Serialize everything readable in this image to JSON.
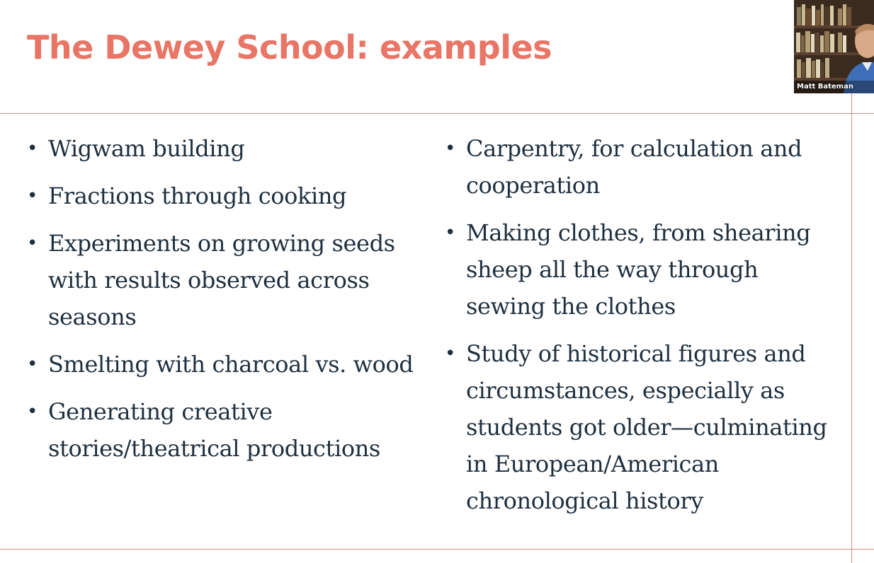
{
  "slide": {
    "title": "The Dewey School: examples",
    "colors": {
      "title": "#e87566",
      "rule": "#d88a7c",
      "body_text": "#1e2f3e",
      "background": "#ffffff"
    },
    "bullet_glyph": "•",
    "left_items": [
      "Wigwam building",
      "Fractions through cooking",
      "Experiments on growing seeds with results observed across seasons",
      "Smelting with charcoal vs. wood",
      "Generating creative stories/theatrical productions"
    ],
    "right_items": [
      "Carpentry, for calculation and cooperation",
      "Making clothes, from shearing sheep all the way through sewing the clothes",
      "Study of historical figures and circumstances, especially as students got older—culminating in European/American chronological history"
    ]
  },
  "video": {
    "participant_name": "Matt Bateman",
    "icon": "participant-video-feed"
  }
}
